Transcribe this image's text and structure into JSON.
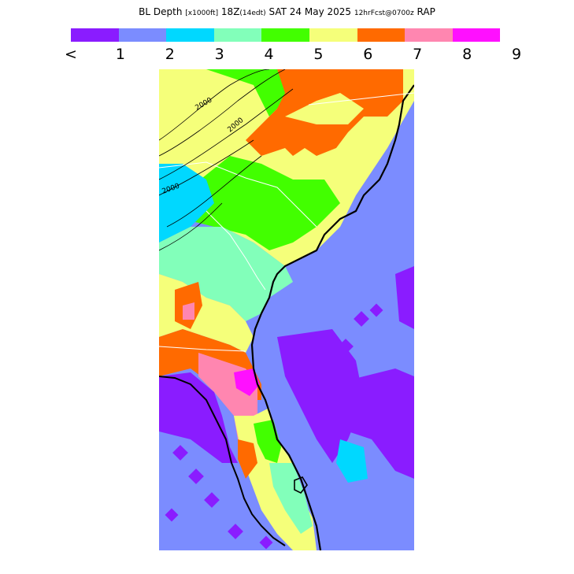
{
  "title": {
    "main": "BL Depth",
    "units": "[x1000ft]",
    "valid": "18Z",
    "edt": "(14edt)",
    "date": "SAT 24 May 2025",
    "fcst": "12hrFcst@0700z",
    "model": "RAP"
  },
  "colorbar": {
    "colors": [
      "#8a1cff",
      "#7b8cff",
      "#00d8ff",
      "#82ffba",
      "#42ff00",
      "#f5ff7a",
      "#ff6a00",
      "#ff86b0",
      "#ff10ff"
    ],
    "labels": [
      "<",
      "1",
      "2",
      "3",
      "4",
      "5",
      "6",
      "7",
      "8",
      "9"
    ]
  },
  "map": {
    "contour_labels": [
      "2000",
      "2000",
      "2000"
    ],
    "ocean_color": "#7b8cff"
  }
}
